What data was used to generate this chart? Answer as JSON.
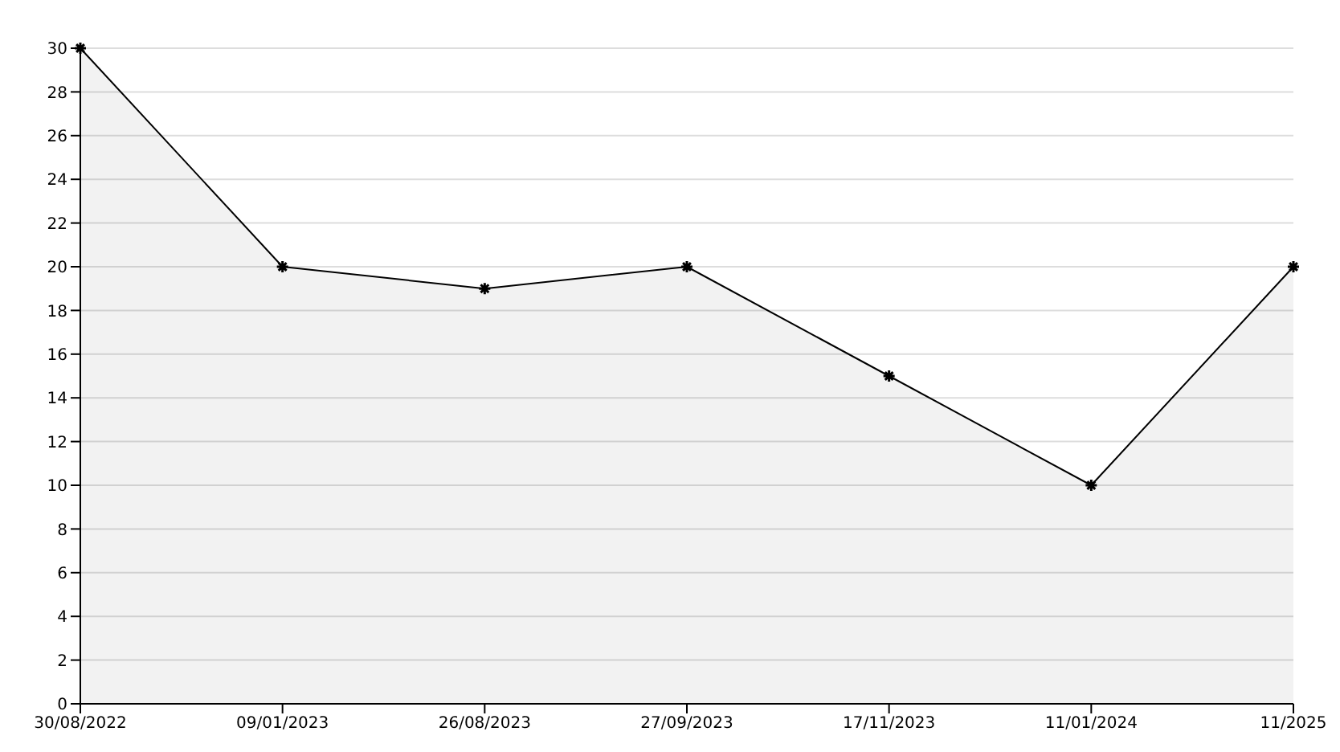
{
  "chart_data": {
    "type": "area",
    "categories": [
      "30/08/2022",
      "09/01/2023",
      "26/08/2023",
      "27/09/2023",
      "17/11/2023",
      "11/01/2024",
      "11/2025"
    ],
    "series": [
      {
        "color": "#000000",
        "values": [
          30,
          20,
          19,
          20,
          15,
          10,
          20
        ]
      }
    ],
    "ylim": [
      0,
      30
    ],
    "yticks": [
      0,
      2,
      4,
      6,
      8,
      10,
      12,
      14,
      16,
      18,
      20,
      22,
      24,
      26,
      28,
      30
    ],
    "grid": "y",
    "marker": "cross",
    "line_style": "solid"
  }
}
